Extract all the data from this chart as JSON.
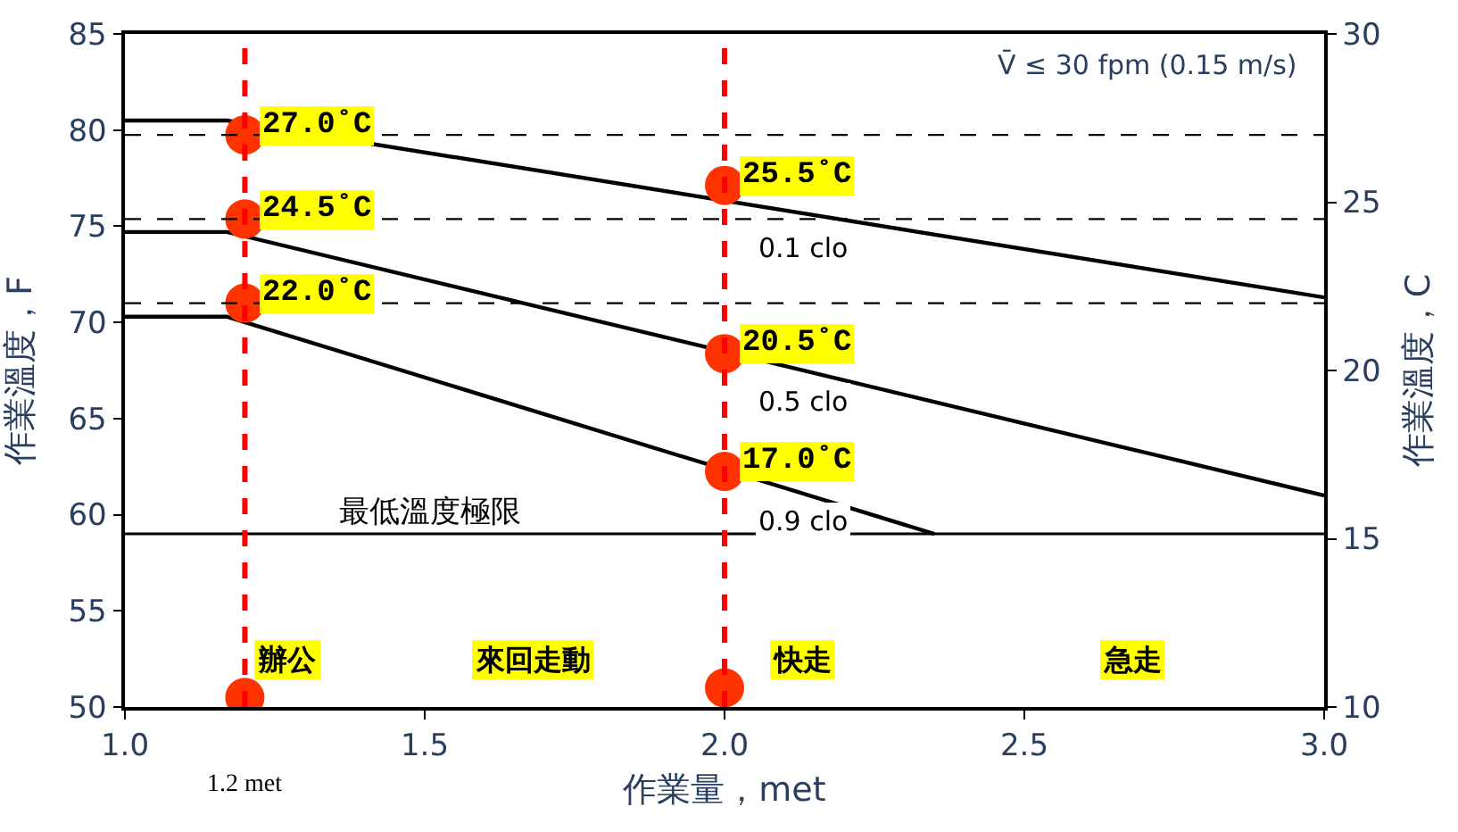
{
  "chart_data": {
    "type": "line",
    "xlabel": "作業量，met",
    "ylabel": "作業溫度，F",
    "y2label": "作業溫度，C",
    "xlim": [
      1.0,
      3.0
    ],
    "xticks": [
      {
        "value": 1.0,
        "label": "1.0"
      },
      {
        "value": 1.5,
        "label": "1.5"
      },
      {
        "value": 2.0,
        "label": "2.0"
      },
      {
        "value": 2.5,
        "label": "2.5"
      },
      {
        "value": 3.0,
        "label": "3.0"
      }
    ],
    "ylim": [
      50,
      85
    ],
    "yticks": [
      50,
      55,
      60,
      65,
      70,
      75,
      80,
      85
    ],
    "y2lim": [
      10,
      30
    ],
    "y2ticks": [
      10,
      15,
      20,
      25,
      30
    ],
    "legend": false,
    "marker": "none",
    "line_style": "solid",
    "series": [
      {
        "name": "0.1 clo",
        "color": "#000000",
        "x": [
          1.0,
          1.17,
          3.0
        ],
        "values": [
          80.5,
          80.5,
          71.3
        ]
      },
      {
        "name": "0.5 clo",
        "color": "#000000",
        "x": [
          1.0,
          1.17,
          3.0
        ],
        "values": [
          74.7,
          74.7,
          61
        ]
      },
      {
        "name": "0.9 clo",
        "color": "#000000",
        "x": [
          1.0,
          1.17,
          2.35
        ],
        "values": [
          70.3,
          70.3,
          59
        ]
      },
      {
        "type": "scatter",
        "marker": "circle",
        "color": "#ff3300",
        "axis": "y2",
        "x": [
          1.2,
          1.2,
          1.2,
          2.0,
          2.0,
          2.0
        ],
        "values": [
          27.0,
          24.5,
          22.0,
          25.5,
          20.5,
          17.0
        ],
        "value_labels": [
          "27.0˚C",
          "24.5˚C",
          "22.0˚C",
          "25.5˚C",
          "20.5˚C",
          "17.0˚C"
        ]
      },
      {
        "type": "scatter",
        "marker": "circle",
        "color": "#ff3300",
        "x": [
          1.2,
          2.0
        ],
        "values": [
          50.5,
          51
        ]
      }
    ],
    "ref_lines": [
      {
        "axis": "y2",
        "value": 27.0,
        "color": "#000000",
        "line_style": "dashed"
      },
      {
        "axis": "y2",
        "value": 24.5,
        "color": "#000000",
        "line_style": "dashed"
      },
      {
        "axis": "y2",
        "value": 22.0,
        "color": "#000000",
        "line_style": "dashed"
      },
      {
        "axis": "y",
        "value": 59,
        "color": "#000000",
        "line_style": "solid",
        "label": "最低溫度極限"
      },
      {
        "axis": "x",
        "value": 1.2,
        "color": "#ff0000",
        "line_style": "dashed",
        "label": "1.2 met"
      },
      {
        "axis": "x",
        "value": 2.0,
        "color": "#ff0000",
        "line_style": "dashed"
      }
    ],
    "annotations": [
      "V̄ ≤ 30 fpm (0.15 m/s)",
      "辦公",
      "來回走動",
      "快走",
      "急走"
    ]
  }
}
